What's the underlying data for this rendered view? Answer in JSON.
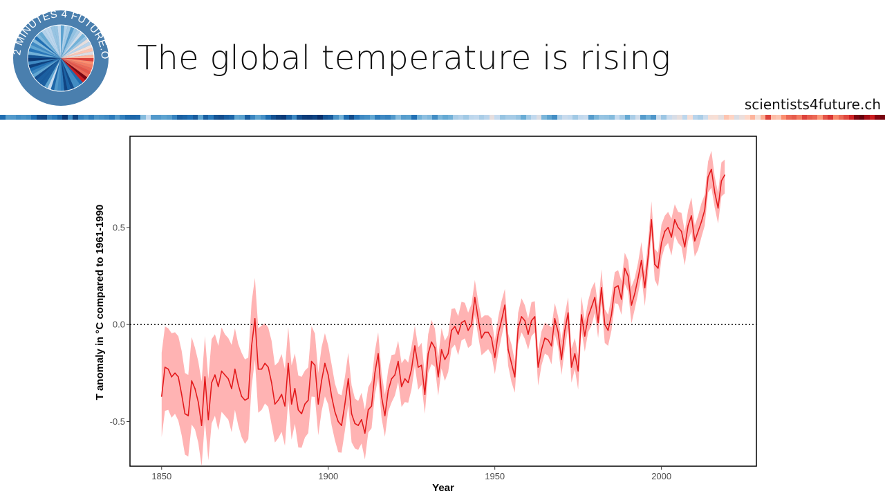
{
  "header": {
    "title": "The global temperature is rising",
    "website": "scientists4future.ch",
    "logo_text": "2 MINUTES 4 FUTURE.ORG"
  },
  "colors": {
    "line": "#e31a1c",
    "band": "#ffb3b3",
    "logo_ring": "#4a7fae",
    "stripes_cold": "#08306b",
    "stripes_warm": "#67000d"
  },
  "chart_data": {
    "type": "line",
    "xlabel": "Year",
    "ylabel": "T anomaly in °C compared to 1961-1990",
    "xlim": [
      1840.5,
      2028.5
    ],
    "ylim": [
      -0.73,
      0.97
    ],
    "x_ticks": [
      1850,
      1900,
      1950,
      2000
    ],
    "x_tick_labels": [
      "1850",
      "1900",
      "1950",
      "2000"
    ],
    "y_ticks": [
      -0.5,
      0.0,
      0.5
    ],
    "y_tick_labels": [
      "-0.5",
      "0.0",
      "0.5"
    ],
    "reference_line": 0.0,
    "grid": false,
    "uncertainty_band": "shaded confidence band around the series, about ±0.2 °C in the 1800s narrowing to about ±0.1 °C recently",
    "series": [
      {
        "x_start": 1850,
        "x_end": 2019,
        "values": [
          -0.37,
          -0.22,
          -0.23,
          -0.27,
          -0.25,
          -0.27,
          -0.36,
          -0.46,
          -0.47,
          -0.29,
          -0.33,
          -0.4,
          -0.52,
          -0.27,
          -0.49,
          -0.3,
          -0.26,
          -0.32,
          -0.24,
          -0.26,
          -0.28,
          -0.33,
          -0.23,
          -0.31,
          -0.37,
          -0.39,
          -0.38,
          -0.11,
          0.03,
          -0.23,
          -0.23,
          -0.2,
          -0.22,
          -0.3,
          -0.41,
          -0.39,
          -0.36,
          -0.42,
          -0.2,
          -0.41,
          -0.33,
          -0.44,
          -0.46,
          -0.41,
          -0.39,
          -0.19,
          -0.21,
          -0.41,
          -0.29,
          -0.2,
          -0.26,
          -0.37,
          -0.45,
          -0.5,
          -0.52,
          -0.41,
          -0.28,
          -0.46,
          -0.51,
          -0.52,
          -0.49,
          -0.56,
          -0.44,
          -0.42,
          -0.25,
          -0.15,
          -0.37,
          -0.47,
          -0.34,
          -0.28,
          -0.26,
          -0.19,
          -0.32,
          -0.28,
          -0.3,
          -0.23,
          -0.11,
          -0.22,
          -0.21,
          -0.36,
          -0.15,
          -0.09,
          -0.12,
          -0.27,
          -0.13,
          -0.18,
          -0.15,
          -0.03,
          -0.01,
          -0.05,
          0.01,
          0.02,
          -0.03,
          0.0,
          0.14,
          0.03,
          -0.07,
          -0.04,
          -0.04,
          -0.07,
          -0.17,
          -0.05,
          0.02,
          0.1,
          -0.13,
          -0.2,
          -0.27,
          -0.02,
          0.04,
          0.02,
          -0.05,
          0.02,
          0.04,
          -0.22,
          -0.13,
          -0.07,
          -0.08,
          -0.11,
          0.03,
          -0.04,
          -0.18,
          -0.03,
          0.06,
          -0.22,
          -0.15,
          -0.24,
          0.05,
          -0.06,
          0.04,
          0.09,
          0.14,
          0.01,
          0.19,
          0.0,
          -0.03,
          0.05,
          0.19,
          0.2,
          0.13,
          0.29,
          0.25,
          0.1,
          0.16,
          0.24,
          0.33,
          0.19,
          0.35,
          0.54,
          0.31,
          0.29,
          0.42,
          0.48,
          0.5,
          0.45,
          0.54,
          0.5,
          0.48,
          0.4,
          0.51,
          0.56,
          0.43,
          0.48,
          0.53,
          0.59,
          0.76,
          0.8,
          0.68,
          0.6,
          0.74,
          0.77
        ]
      }
    ]
  }
}
